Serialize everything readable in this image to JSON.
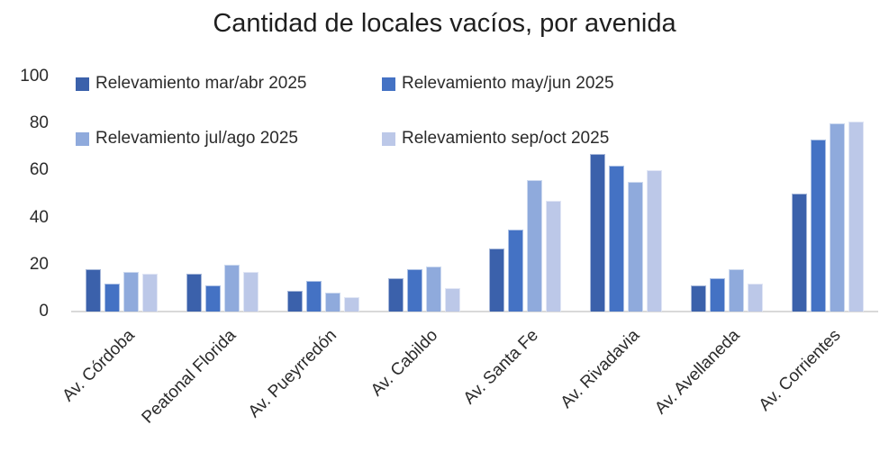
{
  "chart_data": {
    "type": "bar",
    "title": "Cantidad de locales vacíos, por avenida",
    "xlabel": "",
    "ylabel": "",
    "ylim": [
      0,
      100
    ],
    "yticks": [
      0,
      20,
      40,
      60,
      80,
      100
    ],
    "grid": false,
    "legend_position": "top-left-inside",
    "categories": [
      "Av. Córdoba",
      "Peatonal Florida",
      "Av. Pueyrredón",
      "Av. Cabildo",
      "Av. Santa Fe",
      "Av. Rivadavia",
      "Av. Avellaneda",
      "Av. Corrientes"
    ],
    "series": [
      {
        "name": "Relevamiento mar/abr 2025",
        "color": "#3b61ab",
        "values": [
          18,
          16,
          9,
          14,
          27,
          67,
          11,
          50
        ]
      },
      {
        "name": "Relevamiento may/jun 2025",
        "color": "#4472c4",
        "values": [
          12,
          11,
          13,
          18,
          35,
          62,
          14,
          73
        ]
      },
      {
        "name": "Relevamiento jul/ago 2025",
        "color": "#8faadc",
        "values": [
          17,
          20,
          8,
          19,
          56,
          55,
          18,
          80
        ]
      },
      {
        "name": "Relevamiento sep/oct 2025",
        "color": "#bcc8e8",
        "values": [
          16,
          17,
          6,
          10,
          47,
          60,
          12,
          81
        ]
      }
    ],
    "axis_line_color": "#d9d9d9",
    "text_color": "#2b2b2b"
  }
}
